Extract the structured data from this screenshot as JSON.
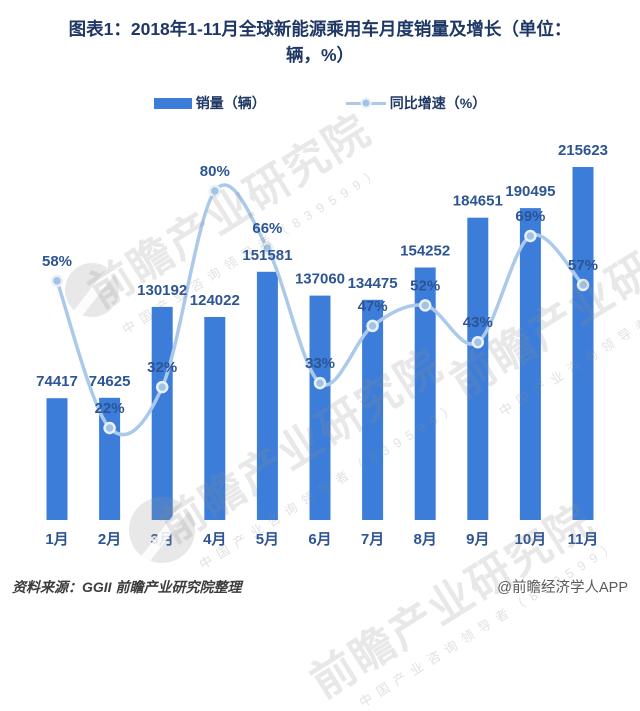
{
  "title_lines": [
    "图表1：2018年1-11月全球新能源乘用车月度销量及增长（单位：",
    "辆，%）"
  ],
  "legend": {
    "bars": "销量（辆）",
    "line": "同比增速（%）"
  },
  "watermark": {
    "text_large": "前瞻产业研究院",
    "text_small": "中国产业咨询领导者（839599）",
    "logo": "qianzhan-logo"
  },
  "footer": {
    "source": "资料来源：GGII  前瞻产业研究院整理",
    "credit": "@前瞻经济学人APP"
  },
  "colors": {
    "bar_fill": "#3c7dd9",
    "line_stroke": "#abc9ea",
    "dot_fill": "#a3c3e6",
    "dot_ring": "#e8f0f8",
    "label_text": "#2d5493",
    "title_text": "#1e3765"
  },
  "chart_data": {
    "type": "bar",
    "subtype": "bar+line combo",
    "title": "图表1：2018年1-11月全球新能源乘用车月度销量及增长（单位：辆，%）",
    "categories": [
      "1月",
      "2月",
      "3月",
      "4月",
      "5月",
      "6月",
      "7月",
      "8月",
      "9月",
      "10月",
      "11月"
    ],
    "series": [
      {
        "name": "销量（辆）",
        "type": "bar",
        "values": [
          74417,
          74625,
          130192,
          124022,
          151581,
          137060,
          134475,
          154252,
          184651,
          190495,
          215623
        ]
      },
      {
        "name": "同比增速（%）",
        "type": "line",
        "values": [
          58,
          22,
          32,
          80,
          66,
          33,
          47,
          52,
          43,
          69,
          57
        ]
      }
    ],
    "xlabel": "",
    "ylabel": "",
    "axes_visible": false,
    "grid": false,
    "data_labels": true,
    "legend_position": "top",
    "bar_axis_range": [
      0,
      244000
    ],
    "line_axis_range_pct": [
      0,
      97
    ]
  }
}
